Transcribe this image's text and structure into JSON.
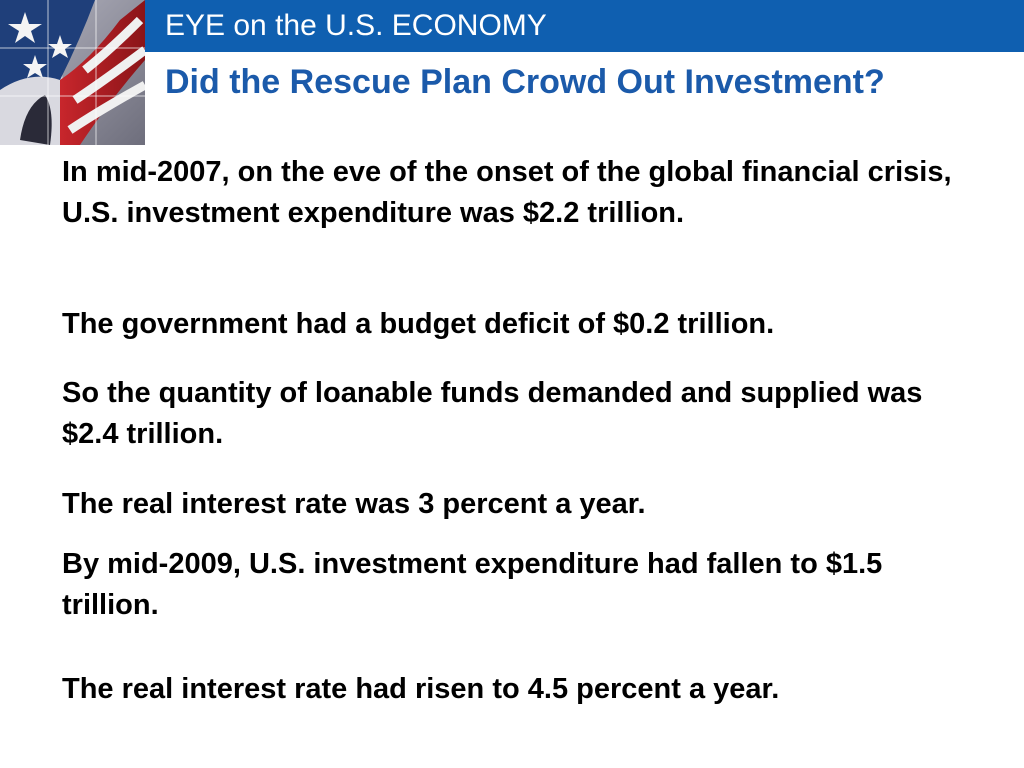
{
  "header": {
    "banner_title": "EYE on the U.S. ECONOMY",
    "slide_title": "Did the Rescue Plan Crowd Out Investment?",
    "banner_color": "#0f5fb0",
    "title_color": "#1b5aaa"
  },
  "graphic": {
    "icon": "american-flag-graphic"
  },
  "body": {
    "paragraphs": [
      "In mid-2007, on the eve of the onset of the global financial crisis, U.S. investment expenditure was $2.2 trillion.",
      "The government had a budget deficit of $0.2 trillion.",
      "So the quantity of loanable funds demanded and supplied was $2.4 trillion.",
      "The real interest rate was 3 percent a year.",
      "By mid-2009, U.S. investment expenditure had fallen to $1.5 trillion.",
      "The real interest rate had risen to 4.5 percent a year."
    ]
  }
}
